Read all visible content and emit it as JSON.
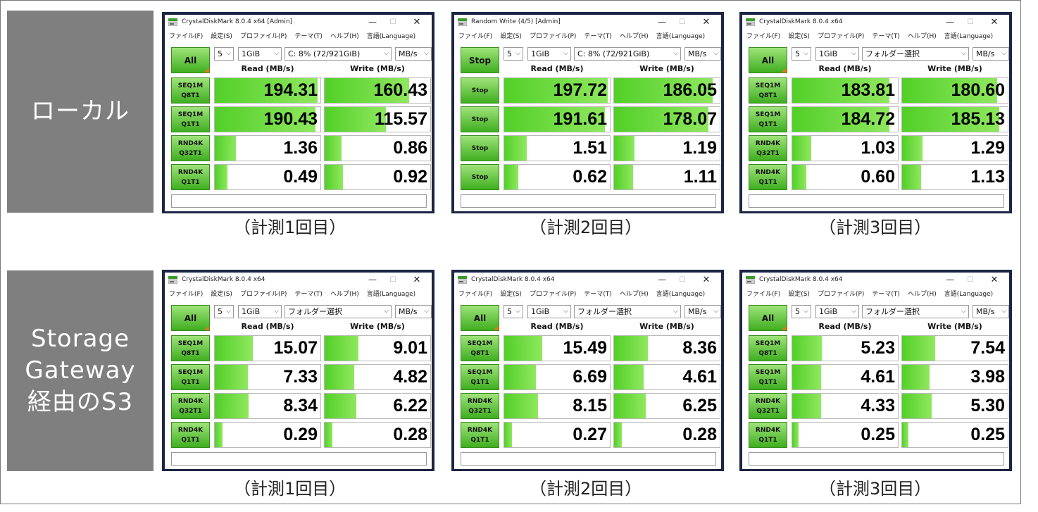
{
  "sections": [
    {
      "label": "ローカル"
    },
    {
      "label": "Storage Gateway経由のS3"
    }
  ],
  "menu": [
    "ファイル(F)",
    "設定(S)",
    "プロファイル(P)",
    "テーマ(T)",
    "ヘルプ(H)",
    "言語(Language)"
  ],
  "headers": {
    "read": "Read (MB/s)",
    "write": "Write (MB/s)"
  },
  "windows": [
    {
      "title": "CrystalDiskMark 8.0.4 x64 [Admin]",
      "button": "All",
      "count": "5",
      "size": "1GiB",
      "target": "C: 8% (72/921GiB)",
      "unit": "MB/s",
      "caption": "（計測1回目）",
      "rows": [
        {
          "label": "SEQ1M\nQ8T1",
          "read": "194.31",
          "write": "160.43",
          "read_fill": 0.97,
          "write_fill": 0.8
        },
        {
          "label": "SEQ1M\nQ1T1",
          "read": "190.43",
          "write": "115.57",
          "read_fill": 0.95,
          "write_fill": 0.58
        },
        {
          "label": "RND4K\nQ32T1",
          "read": "1.36",
          "write": "0.86",
          "read_fill": 0.2,
          "write_fill": 0.16
        },
        {
          "label": "RND4K\nQ1T1",
          "read": "0.49",
          "write": "0.92",
          "read_fill": 0.12,
          "write_fill": 0.17
        }
      ]
    },
    {
      "title": "Random Write (4/5) [Admin]",
      "button": "Stop",
      "count": "5",
      "size": "1GiB",
      "target": "C: 8% (72/921GiB)",
      "unit": "MB/s",
      "caption": "（計測2回目）",
      "rows": [
        {
          "label": "Stop",
          "read": "197.72",
          "write": "186.05",
          "read_fill": 0.98,
          "write_fill": 0.93
        },
        {
          "label": "Stop",
          "read": "191.61",
          "write": "178.07",
          "read_fill": 0.95,
          "write_fill": 0.89
        },
        {
          "label": "Stop",
          "read": "1.51",
          "write": "1.19",
          "read_fill": 0.21,
          "write_fill": 0.19
        },
        {
          "label": "Stop",
          "read": "0.62",
          "write": "1.11",
          "read_fill": 0.13,
          "write_fill": 0.18
        }
      ]
    },
    {
      "title": "CrystalDiskMark 8.0.4 x64",
      "button": "All",
      "count": "5",
      "size": "1GiB",
      "target": "フォルダー選択",
      "unit": "MB/s",
      "caption": "（計測3回目）",
      "rows": [
        {
          "label": "SEQ1M\nQ8T1",
          "read": "183.81",
          "write": "180.60",
          "read_fill": 0.92,
          "write_fill": 0.9
        },
        {
          "label": "SEQ1M\nQ1T1",
          "read": "184.72",
          "write": "185.13",
          "read_fill": 0.92,
          "write_fill": 0.92
        },
        {
          "label": "RND4K\nQ32T1",
          "read": "1.03",
          "write": "1.29",
          "read_fill": 0.18,
          "write_fill": 0.19
        },
        {
          "label": "RND4K\nQ1T1",
          "read": "0.60",
          "write": "1.13",
          "read_fill": 0.13,
          "write_fill": 0.18
        }
      ]
    },
    {
      "title": "CrystalDiskMark 8.0.4 x64",
      "button": "All",
      "count": "5",
      "size": "1GiB",
      "target": "フォルダー選択",
      "unit": "MB/s",
      "caption": "（計測1回目）",
      "rows": [
        {
          "label": "SEQ1M\nQ8T1",
          "read": "15.07",
          "write": "9.01",
          "read_fill": 0.36,
          "write_fill": 0.32
        },
        {
          "label": "SEQ1M\nQ1T1",
          "read": "7.33",
          "write": "4.82",
          "read_fill": 0.31,
          "write_fill": 0.28
        },
        {
          "label": "RND4K\nQ32T1",
          "read": "8.34",
          "write": "6.22",
          "read_fill": 0.32,
          "write_fill": 0.3
        },
        {
          "label": "RND4K\nQ1T1",
          "read": "0.29",
          "write": "0.28",
          "read_fill": 0.07,
          "write_fill": 0.07
        }
      ]
    },
    {
      "title": "CrystalDiskMark 8.0.4 x64",
      "button": "All",
      "count": "5",
      "size": "1GiB",
      "target": "フォルダー選択",
      "unit": "MB/s",
      "caption": "（計測2回目）",
      "rows": [
        {
          "label": "SEQ1M\nQ8T1",
          "read": "15.49",
          "write": "8.36",
          "read_fill": 0.36,
          "write_fill": 0.32
        },
        {
          "label": "SEQ1M\nQ1T1",
          "read": "6.69",
          "write": "4.61",
          "read_fill": 0.3,
          "write_fill": 0.28
        },
        {
          "label": "RND4K\nQ32T1",
          "read": "8.15",
          "write": "6.25",
          "read_fill": 0.32,
          "write_fill": 0.3
        },
        {
          "label": "RND4K\nQ1T1",
          "read": "0.27",
          "write": "0.28",
          "read_fill": 0.07,
          "write_fill": 0.07
        }
      ]
    },
    {
      "title": "CrystalDiskMark 8.0.4 x64",
      "button": "All",
      "count": "5",
      "size": "1GiB",
      "target": "フォルダー選択",
      "unit": "MB/s",
      "caption": "（計測3回目）",
      "rows": [
        {
          "label": "SEQ1M\nQ8T1",
          "read": "5.23",
          "write": "7.54",
          "read_fill": 0.28,
          "write_fill": 0.31
        },
        {
          "label": "SEQ1M\nQ1T1",
          "read": "4.61",
          "write": "3.98",
          "read_fill": 0.27,
          "write_fill": 0.26
        },
        {
          "label": "RND4K\nQ32T1",
          "read": "4.33",
          "write": "5.30",
          "read_fill": 0.27,
          "write_fill": 0.28
        },
        {
          "label": "RND4K\nQ1T1",
          "read": "0.25",
          "write": "0.25",
          "read_fill": 0.06,
          "write_fill": 0.06
        }
      ]
    }
  ]
}
